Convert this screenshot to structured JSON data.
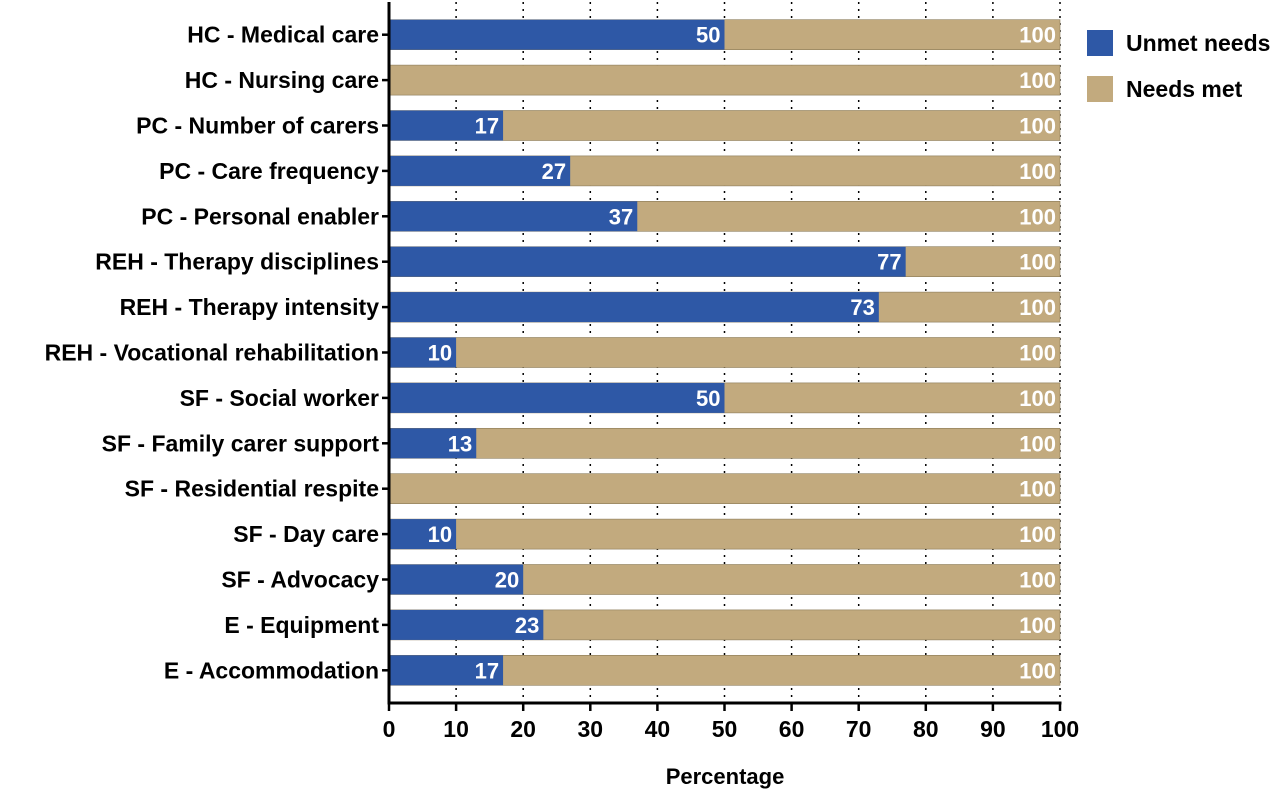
{
  "chart_data": {
    "type": "bar",
    "orientation": "horizontal",
    "categories": [
      "HC - Medical care",
      "HC - Nursing care",
      "PC - Number of carers",
      "PC - Care frequency",
      "PC - Personal enabler",
      "REH - Therapy disciplines",
      "REH - Therapy intensity",
      "REH - Vocational rehabilitation",
      "SF - Social worker",
      "SF - Family carer support",
      "SF - Residential respite",
      "SF - Day care",
      "SF - Advocacy",
      "E - Equipment",
      "E - Accommodation"
    ],
    "series": [
      {
        "name": "Unmet needs",
        "color": "#2e58a6",
        "values": [
          50,
          0,
          17,
          27,
          37,
          77,
          73,
          10,
          50,
          13,
          0,
          10,
          20,
          23,
          17
        ]
      },
      {
        "name": "Needs met",
        "color": "#c2aa7e",
        "values": [
          100,
          100,
          100,
          100,
          100,
          100,
          100,
          100,
          100,
          100,
          100,
          100,
          100,
          100,
          100
        ]
      }
    ],
    "xlabel": "Percentage",
    "ylabel": "",
    "xlim": [
      0,
      100
    ],
    "xticks": [
      0,
      10,
      20,
      30,
      40,
      50,
      60,
      70,
      80,
      90,
      100
    ],
    "grid": "vertical dotted",
    "legend": "top-right"
  }
}
